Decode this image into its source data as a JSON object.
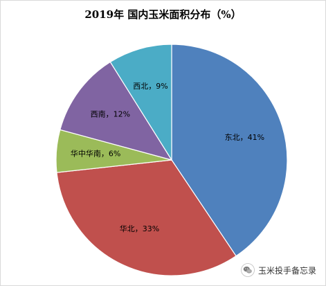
{
  "chart_data": {
    "type": "pie",
    "title": "2019年 国内玉米面积分布（%）",
    "slices": [
      {
        "name": "东北",
        "value": 41,
        "label": "东北，41%",
        "color": "#4f81bd"
      },
      {
        "name": "华北",
        "value": 33,
        "label": "华北，33%",
        "color": "#c0504d"
      },
      {
        "name": "华中华南",
        "value": 6,
        "label": "华中华南，6%",
        "color": "#9bbb59"
      },
      {
        "name": "西南",
        "value": 12,
        "label": "西南，12%",
        "color": "#8064a2"
      },
      {
        "name": "西北",
        "value": 9,
        "label": "西北，9%",
        "color": "#4bacc6"
      }
    ],
    "start_angle_deg": 0,
    "direction": "clockwise",
    "legend": "none",
    "data_labels": "inside"
  },
  "watermark": {
    "icon": "wechat-icon",
    "text": "玉米投手备忘录"
  }
}
